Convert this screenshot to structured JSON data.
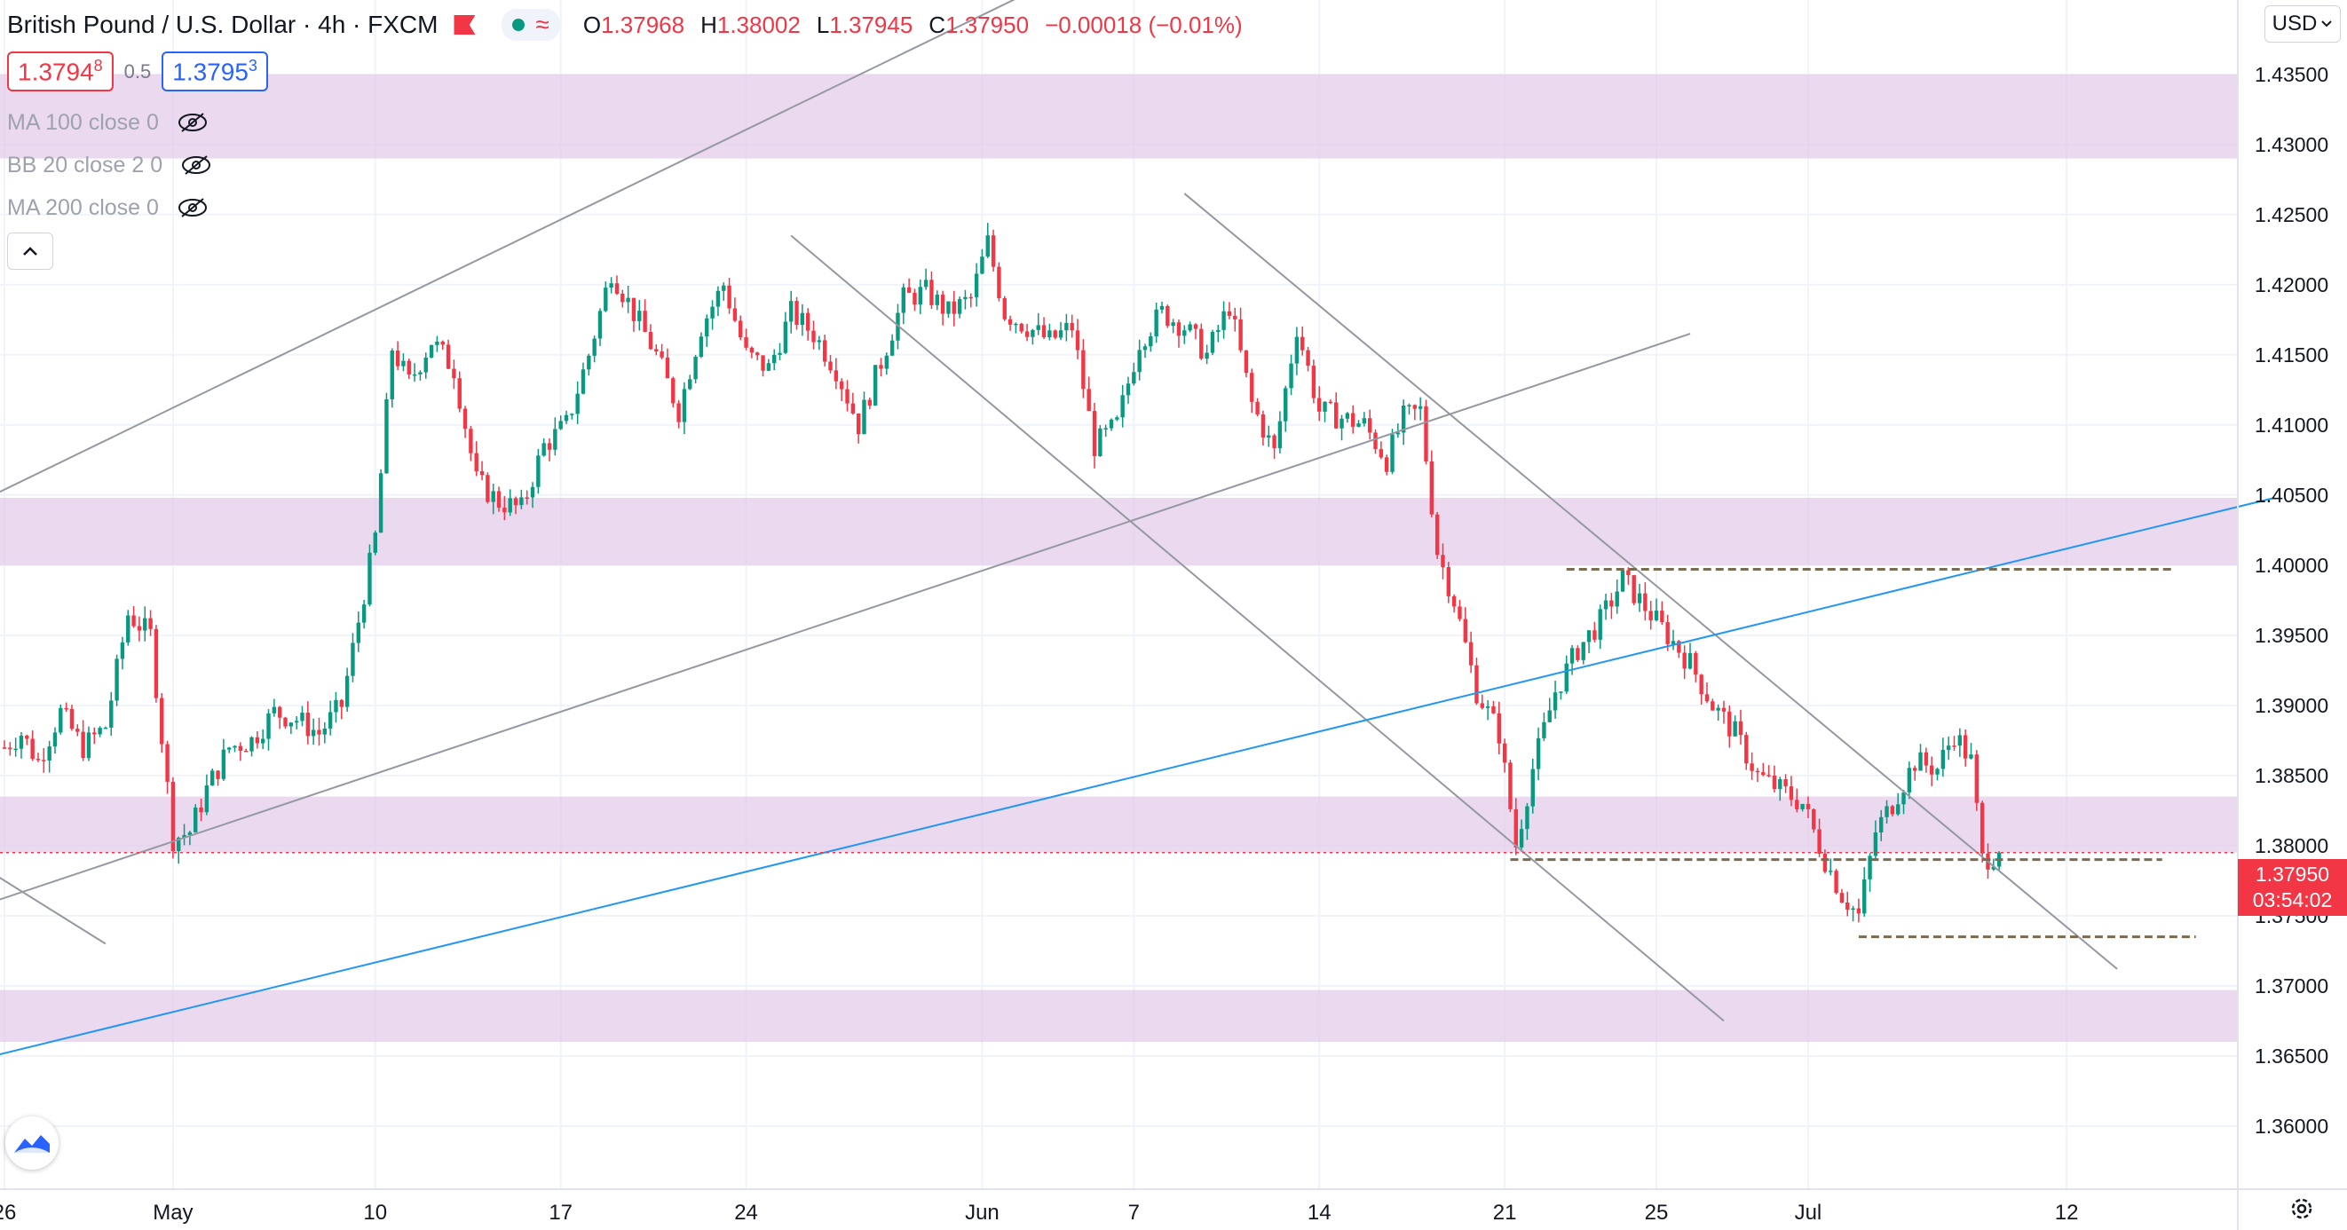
{
  "header": {
    "title": "British Pound / U.S. Dollar · 4h · FXCM",
    "ohlc": {
      "o_label": "O",
      "o": "1.37968",
      "h_label": "H",
      "h": "1.38002",
      "l_label": "L",
      "l": "1.37945",
      "c_label": "C",
      "c": "1.37950",
      "change": "−0.00018 (−0.01%)"
    },
    "icons": [
      "flag-icon",
      "status-dot-icon",
      "waves-icon"
    ]
  },
  "price_boxes": {
    "sell_main": "1.3794",
    "sell_sup": "8",
    "spread": "0.5",
    "buy_main": "1.3795",
    "buy_sup": "3"
  },
  "indicators": [
    {
      "label": "MA 100 close 0"
    },
    {
      "label": "BB 20 close 2 0"
    },
    {
      "label": "MA 200 close 0"
    }
  ],
  "collapse_icon": "chevron-up-icon",
  "currency": {
    "label": "USD",
    "icon": "chevron-down-icon"
  },
  "last_price": {
    "value": "1.37950",
    "countdown": "03:54:02"
  },
  "colors": {
    "up": "#089981",
    "down": "#f23645",
    "zone": "#e1c4e8",
    "trendline": "#9598a1",
    "blue_line": "#2196f3",
    "dashed": "#7a6a4f"
  },
  "chart_data": {
    "type": "candlestick",
    "timeframe": "4h",
    "ylim": [
      1.3555,
      1.4403
    ],
    "y_ticks": [
      "1.43500",
      "1.43000",
      "1.42500",
      "1.42000",
      "1.41500",
      "1.41000",
      "1.40500",
      "1.40000",
      "1.39500",
      "1.39000",
      "1.38500",
      "1.38000",
      "1.37500",
      "1.37000",
      "1.36500",
      "1.36000"
    ],
    "x_ticks": [
      {
        "label": "26",
        "i": 0
      },
      {
        "label": "May",
        "i": 30
      },
      {
        "label": "10",
        "i": 66
      },
      {
        "label": "17",
        "i": 99
      },
      {
        "label": "24",
        "i": 132
      },
      {
        "label": "Jun",
        "i": 174
      },
      {
        "label": "7",
        "i": 201
      },
      {
        "label": "14",
        "i": 234
      },
      {
        "label": "21",
        "i": 267
      },
      {
        "label": "25",
        "i": 294
      },
      {
        "label": "Jul",
        "i": 321
      },
      {
        "label": "12",
        "i": 367
      }
    ],
    "bar_count": 400,
    "path": [
      [
        0,
        1.387
      ],
      [
        3,
        1.388
      ],
      [
        6,
        1.386
      ],
      [
        10,
        1.3895
      ],
      [
        14,
        1.387
      ],
      [
        18,
        1.3885
      ],
      [
        22,
        1.3965
      ],
      [
        26,
        1.395
      ],
      [
        30,
        1.3805
      ],
      [
        33,
        1.381
      ],
      [
        36,
        1.384
      ],
      [
        40,
        1.387
      ],
      [
        44,
        1.3875
      ],
      [
        48,
        1.3895
      ],
      [
        52,
        1.389
      ],
      [
        56,
        1.388
      ],
      [
        60,
        1.39
      ],
      [
        63,
        1.396
      ],
      [
        66,
        1.402
      ],
      [
        69,
        1.4155
      ],
      [
        72,
        1.413
      ],
      [
        76,
        1.416
      ],
      [
        80,
        1.414
      ],
      [
        84,
        1.406
      ],
      [
        88,
        1.4045
      ],
      [
        92,
        1.404
      ],
      [
        96,
        1.4085
      ],
      [
        100,
        1.41
      ],
      [
        104,
        1.415
      ],
      [
        108,
        1.421
      ],
      [
        112,
        1.418
      ],
      [
        116,
        1.415
      ],
      [
        120,
        1.411
      ],
      [
        124,
        1.417
      ],
      [
        128,
        1.42
      ],
      [
        132,
        1.415
      ],
      [
        136,
        1.414
      ],
      [
        140,
        1.418
      ],
      [
        144,
        1.4165
      ],
      [
        148,
        1.414
      ],
      [
        152,
        1.41
      ],
      [
        156,
        1.4145
      ],
      [
        160,
        1.419
      ],
      [
        164,
        1.4195
      ],
      [
        168,
        1.418
      ],
      [
        172,
        1.419
      ],
      [
        175,
        1.423
      ],
      [
        178,
        1.418
      ],
      [
        182,
        1.417
      ],
      [
        186,
        1.416
      ],
      [
        190,
        1.417
      ],
      [
        194,
        1.4085
      ],
      [
        198,
        1.41
      ],
      [
        202,
        1.416
      ],
      [
        206,
        1.418
      ],
      [
        210,
        1.417
      ],
      [
        214,
        1.415
      ],
      [
        218,
        1.4185
      ],
      [
        222,
        1.4115
      ],
      [
        226,
        1.408
      ],
      [
        230,
        1.417
      ],
      [
        234,
        1.411
      ],
      [
        238,
        1.4105
      ],
      [
        242,
        1.41
      ],
      [
        246,
        1.4075
      ],
      [
        249,
        1.4105
      ],
      [
        252,
        1.411
      ],
      [
        255,
        1.401
      ],
      [
        258,
        1.3975
      ],
      [
        262,
        1.391
      ],
      [
        266,
        1.388
      ],
      [
        269,
        1.38
      ],
      [
        272,
        1.3855
      ],
      [
        276,
        1.391
      ],
      [
        280,
        1.394
      ],
      [
        284,
        1.396
      ],
      [
        288,
        1.399
      ],
      [
        292,
        1.397
      ],
      [
        296,
        1.395
      ],
      [
        300,
        1.393
      ],
      [
        304,
        1.39
      ],
      [
        308,
        1.388
      ],
      [
        312,
        1.385
      ],
      [
        316,
        1.384
      ],
      [
        320,
        1.383
      ],
      [
        324,
        1.379
      ],
      [
        327,
        1.3765
      ],
      [
        330,
        1.375
      ],
      [
        333,
        1.381
      ],
      [
        336,
        1.383
      ],
      [
        340,
        1.386
      ],
      [
        344,
        1.3855
      ],
      [
        347,
        1.388
      ],
      [
        350,
        1.386
      ],
      [
        352,
        1.379
      ],
      [
        355,
        1.3795
      ]
    ],
    "zones": [
      [
        1.429,
        1.435
      ],
      [
        1.4,
        1.4048
      ],
      [
        1.3795,
        1.3835
      ],
      [
        1.366,
        1.3697
      ]
    ],
    "trendlines": [
      {
        "color": "trendline",
        "from": [
          -2,
          1.405
        ],
        "to": [
          250,
          1.454
        ]
      },
      {
        "color": "trendline",
        "from": [
          -2,
          1.376
        ],
        "to": [
          300,
          1.4165
        ]
      },
      {
        "color": "trendline",
        "from": [
          -2,
          1.378
        ],
        "to": [
          18,
          1.373
        ]
      },
      {
        "color": "trendline",
        "from": [
          140,
          1.4235
        ],
        "to": [
          306,
          1.3675
        ]
      },
      {
        "color": "trendline",
        "from": [
          210,
          1.4265
        ],
        "to": [
          376,
          1.3712
        ]
      },
      {
        "color": "blue_line",
        "from": [
          -2,
          1.365
        ],
        "to": [
          404,
          1.4048
        ]
      }
    ],
    "dashed_levels": [
      {
        "price": 1.3997,
        "from": 278,
        "to": 386
      },
      {
        "price": 1.379,
        "from": 268,
        "to": 384
      },
      {
        "price": 1.3735,
        "from": 330,
        "to": 390
      }
    ],
    "last_close": 1.3795
  }
}
